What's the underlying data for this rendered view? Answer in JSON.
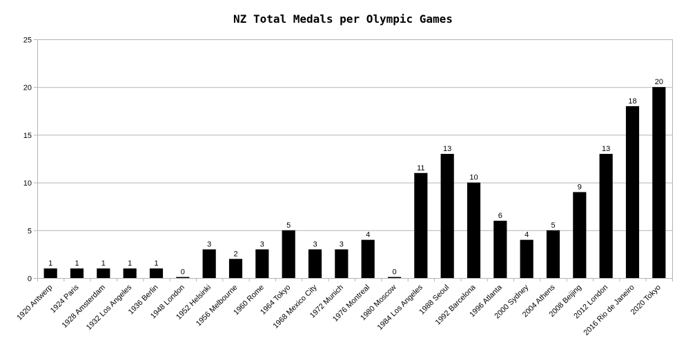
{
  "chart_data": {
    "type": "bar",
    "title": "NZ Total Medals per Olympic Games",
    "xlabel": "",
    "ylabel": "",
    "ylim": [
      0,
      25
    ],
    "yticks": [
      0,
      5,
      10,
      15,
      20,
      25
    ],
    "grid": true,
    "legend": "none",
    "bar_color": "#000000",
    "grid_color": "#b3b3b3",
    "categories": [
      "1920 Antwerp",
      "1924 Paris",
      "1928 Amsterdam",
      "1932 Los Angeles",
      "1936 Berlin",
      "1948 London",
      "1952 Helsinki",
      "1956 Melbourne",
      "1960 Rome",
      "1964 Tokyo",
      "1968 Mexico City",
      "1972 Munich",
      "1976 Montreal",
      "1980 Moscow",
      "1984 Los Angeles",
      "1988 Seoul",
      "1992 Barcelona",
      "1996 Atlanta",
      "2000 Sydney",
      "2004 Athens",
      "2008 Beijing",
      "2012 London",
      "2016 Rio de Janeiro",
      "2020 Tokyo"
    ],
    "values": [
      1,
      1,
      1,
      1,
      1,
      0,
      3,
      2,
      3,
      5,
      3,
      3,
      4,
      0,
      11,
      13,
      10,
      6,
      4,
      5,
      9,
      13,
      18,
      20
    ]
  }
}
